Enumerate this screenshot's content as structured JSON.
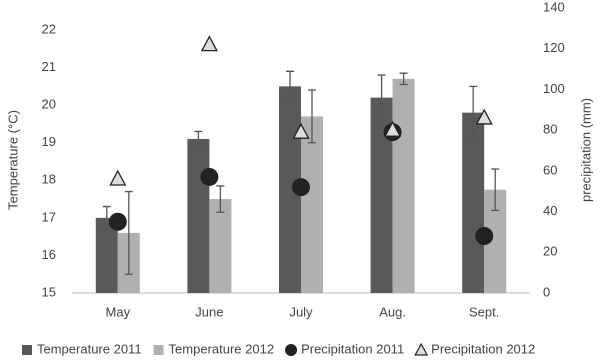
{
  "chart_data": {
    "type": "bar",
    "categories": [
      "May",
      "June",
      "July",
      "Aug.",
      "Sept."
    ],
    "ylabel": "Temperature (°C)",
    "y2label": "precipitation (mm)",
    "ylim": [
      15,
      22
    ],
    "yticks": [
      15,
      16,
      17,
      18,
      19,
      20,
      21,
      22
    ],
    "y2lim": [
      0,
      140
    ],
    "y2ticks": [
      0,
      20,
      40,
      60,
      80,
      100,
      120,
      140
    ],
    "legend": "bottom",
    "series": [
      {
        "name": "Temperature 2011",
        "kind": "bar",
        "color": "#595959",
        "values": [
          17.0,
          19.1,
          20.5,
          20.2,
          19.8
        ],
        "errors": [
          0.3,
          0.2,
          0.4,
          0.6,
          0.7
        ]
      },
      {
        "name": "Temperature 2012",
        "kind": "bar",
        "color": "#b0b0b0",
        "values": [
          16.6,
          17.5,
          19.7,
          20.7,
          17.75
        ],
        "errors": [
          1.1,
          0.35,
          0.7,
          0.15,
          0.55
        ]
      },
      {
        "name": "Precipitation 2011",
        "kind": "scatter",
        "marker": "circle",
        "axis": "y2",
        "color": "#222222",
        "values": [
          35,
          57,
          52,
          79,
          28
        ]
      },
      {
        "name": "Precipitation 2012",
        "kind": "scatter",
        "marker": "triangle",
        "axis": "y2",
        "color": "#dddddd",
        "values": [
          56,
          122,
          79,
          80,
          86
        ]
      }
    ]
  }
}
